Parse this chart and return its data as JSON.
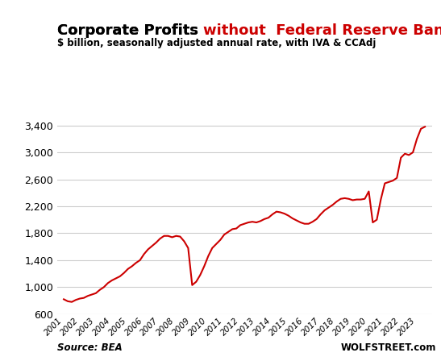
{
  "title_black": "Corporate Profits ",
  "title_red": "without  Federal Reserve Banks",
  "subtitle": "$ billion, seasonally adjusted annual rate, with IVA & CCAdj",
  "source_left": "Source: BEA",
  "source_right": "WOLFSTREET.com",
  "line_color": "#cc0000",
  "background_color": "#ffffff",
  "grid_color": "#cccccc",
  "ylim": [
    600,
    3600
  ],
  "yticks": [
    600,
    1000,
    1400,
    1800,
    2200,
    2600,
    3000,
    3400
  ],
  "years": [
    2001,
    2002,
    2003,
    2004,
    2005,
    2006,
    2007,
    2008,
    2009,
    2010,
    2011,
    2012,
    2013,
    2014,
    2015,
    2016,
    2017,
    2018,
    2019,
    2020,
    2021,
    2022,
    2023
  ],
  "quarterly_x": [
    2001.0,
    2001.25,
    2001.5,
    2001.75,
    2002.0,
    2002.25,
    2002.5,
    2002.75,
    2003.0,
    2003.25,
    2003.5,
    2003.75,
    2004.0,
    2004.25,
    2004.5,
    2004.75,
    2005.0,
    2005.25,
    2005.5,
    2005.75,
    2006.0,
    2006.25,
    2006.5,
    2006.75,
    2007.0,
    2007.25,
    2007.5,
    2007.75,
    2008.0,
    2008.25,
    2008.5,
    2008.75,
    2009.0,
    2009.25,
    2009.5,
    2009.75,
    2010.0,
    2010.25,
    2010.5,
    2010.75,
    2011.0,
    2011.25,
    2011.5,
    2011.75,
    2012.0,
    2012.25,
    2012.5,
    2012.75,
    2013.0,
    2013.25,
    2013.5,
    2013.75,
    2014.0,
    2014.25,
    2014.5,
    2014.75,
    2015.0,
    2015.25,
    2015.5,
    2015.75,
    2016.0,
    2016.25,
    2016.5,
    2016.75,
    2017.0,
    2017.25,
    2017.5,
    2017.75,
    2018.0,
    2018.25,
    2018.5,
    2018.75,
    2019.0,
    2019.25,
    2019.5,
    2019.75,
    2020.0,
    2020.25,
    2020.5,
    2020.75,
    2021.0,
    2021.25,
    2021.5,
    2021.75,
    2022.0,
    2022.25,
    2022.5,
    2022.75,
    2023.0,
    2023.25,
    2023.5
  ],
  "quarterly_values": [
    820,
    790,
    780,
    810,
    830,
    840,
    870,
    890,
    910,
    960,
    1000,
    1060,
    1100,
    1130,
    1160,
    1210,
    1270,
    1310,
    1360,
    1400,
    1490,
    1560,
    1610,
    1660,
    1720,
    1760,
    1760,
    1740,
    1760,
    1750,
    1680,
    1580,
    1030,
    1080,
    1180,
    1310,
    1460,
    1580,
    1640,
    1700,
    1780,
    1820,
    1860,
    1870,
    1920,
    1940,
    1960,
    1970,
    1960,
    1980,
    2010,
    2030,
    2080,
    2120,
    2110,
    2090,
    2060,
    2020,
    1990,
    1960,
    1940,
    1940,
    1970,
    2010,
    2080,
    2140,
    2180,
    2220,
    2270,
    2310,
    2320,
    2310,
    2290,
    2300,
    2300,
    2310,
    2420,
    1960,
    2000,
    2300,
    2540,
    2560,
    2580,
    2620,
    2920,
    2980,
    2960,
    3000,
    3200,
    3350,
    3380
  ]
}
